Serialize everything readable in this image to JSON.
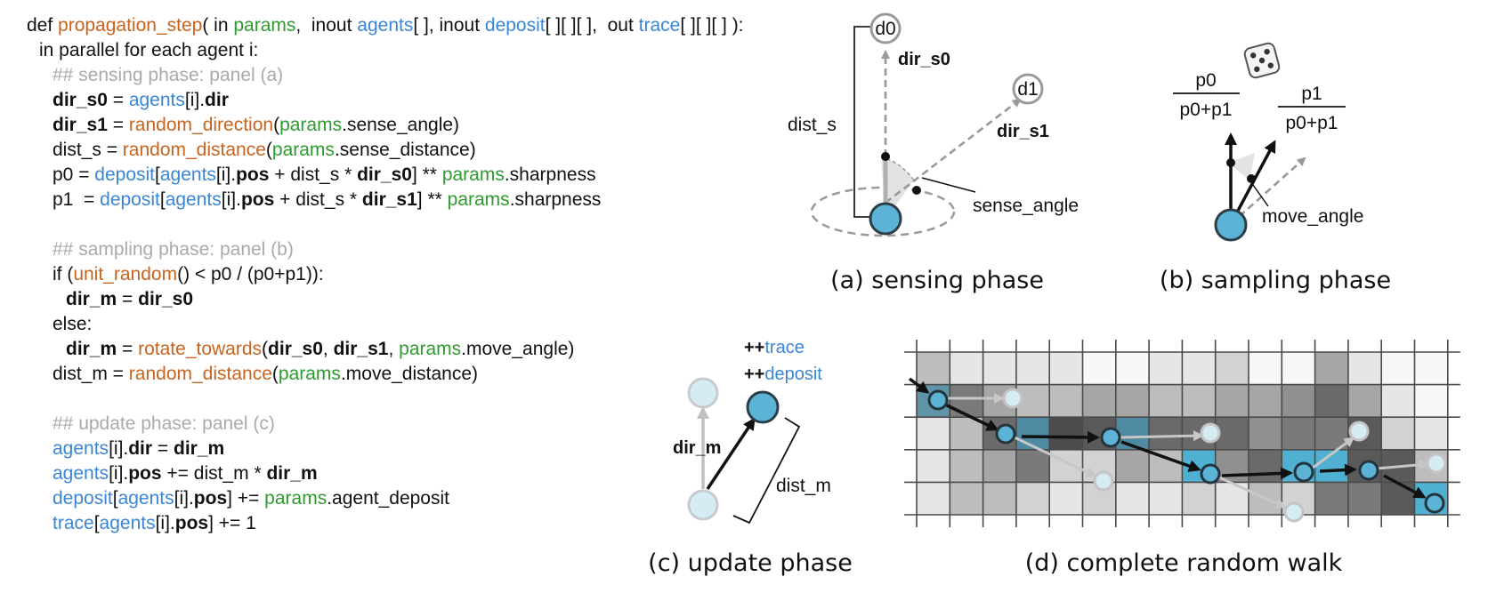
{
  "code": {
    "l1": {
      "def": "def ",
      "fn": "propagation_step",
      "open": "( in ",
      "params": "params",
      "c1": ",  inout ",
      "agents": "agents",
      "a1": "[ ], inout ",
      "deposit": "deposit",
      "d1": "[ ][ ][ ],  out ",
      "trace": "trace",
      "t1": "[ ][ ][ ] ):"
    },
    "l2": "in parallel for each agent i:",
    "l3": "## sensing phase: panel (a)",
    "l4": {
      "a": "dir_s0",
      "b": " = ",
      "c": "agents",
      "d": "[i].",
      "e": "dir"
    },
    "l5": {
      "a": "dir_s1",
      "b": " = ",
      "c": "random_direction",
      "d": "(",
      "e": "params",
      "f": ".sense_angle)"
    },
    "l6": {
      "a": "dist_s = ",
      "b": "random_distance",
      "c": "(",
      "d": "params",
      "e": ".sense_distance)"
    },
    "l7": {
      "a": "p0 = ",
      "b": "deposit",
      "c": "[",
      "d": "agents",
      "e": "[i].",
      "f": "pos",
      "g": " + dist_s * ",
      "h": "dir_s0",
      "i": "] ** ",
      "j": "params",
      "k": ".sharpness"
    },
    "l8": {
      "a": "p1  = ",
      "b": "deposit",
      "c": "[",
      "d": "agents",
      "e": "[i].",
      "f": "pos",
      "g": " + dist_s * ",
      "h": "dir_s1",
      "i": "] ** ",
      "j": "params",
      "k": ".sharpness"
    },
    "l9": "## sampling phase: panel (b)",
    "l10": {
      "a": "if (",
      "b": "unit_random",
      "c": "() < p0 / (p0+p1)):"
    },
    "l11": {
      "a": "dir_m",
      "b": " = ",
      "c": "dir_s0"
    },
    "l12": "else:",
    "l13": {
      "a": "dir_m",
      "b": " = ",
      "c": "rotate_towards",
      "d": "(",
      "e": "dir_s0",
      "f": ", ",
      "g": "dir_s1",
      "h": ", ",
      "i": "params",
      "j": ".move_angle)"
    },
    "l14": {
      "a": "dist_m = ",
      "b": "random_distance",
      "c": "(",
      "d": "params",
      "e": ".move_distance)"
    },
    "l15": "## update phase: panel (c)",
    "l16": {
      "a": "agents",
      "b": "[i].",
      "c": "dir",
      "d": " = ",
      "e": "dir_m"
    },
    "l17": {
      "a": "agents",
      "b": "[i].",
      "c": "pos",
      "d": " += dist_m * ",
      "e": "dir_m"
    },
    "l18": {
      "a": "deposit",
      "b": "[",
      "c": "agents",
      "d": "[i].",
      "e": "pos",
      "f": "] += ",
      "g": "params",
      "h": ".agent_deposit"
    },
    "l19": {
      "a": "trace",
      "b": "[",
      "c": "agents",
      "d": "[i].",
      "e": "pos",
      "f": "] += 1"
    }
  },
  "panel_a": {
    "d0": "d0",
    "d1": "d1",
    "dir_s0": "dir_s0",
    "dir_s1": "dir_s1",
    "dist_s": "dist_s",
    "sense_angle": "sense_angle",
    "caption": "(a) sensing phase"
  },
  "panel_b": {
    "p0_num": "p0",
    "p0_den": "p0+p1",
    "p1_num": "p1",
    "p1_den": "p0+p1",
    "move_angle": "move_angle",
    "caption": "(b) sampling phase"
  },
  "panel_c": {
    "plus1": "++",
    "trace": "trace",
    "plus2": "++",
    "deposit": "deposit",
    "dir_m": "dir_m",
    "dist_m": "dist_m",
    "caption": "(c) update phase"
  },
  "panel_d": {
    "caption": "(d) complete random walk"
  },
  "colors": {
    "code_keyword": "#111111",
    "function": "#c8641e",
    "param": "#2e9b2e",
    "variable": "#3a86d6",
    "comment": "#aaaaaa",
    "agent": "#5bb4d6",
    "agent_light": "#d6ecf5"
  }
}
